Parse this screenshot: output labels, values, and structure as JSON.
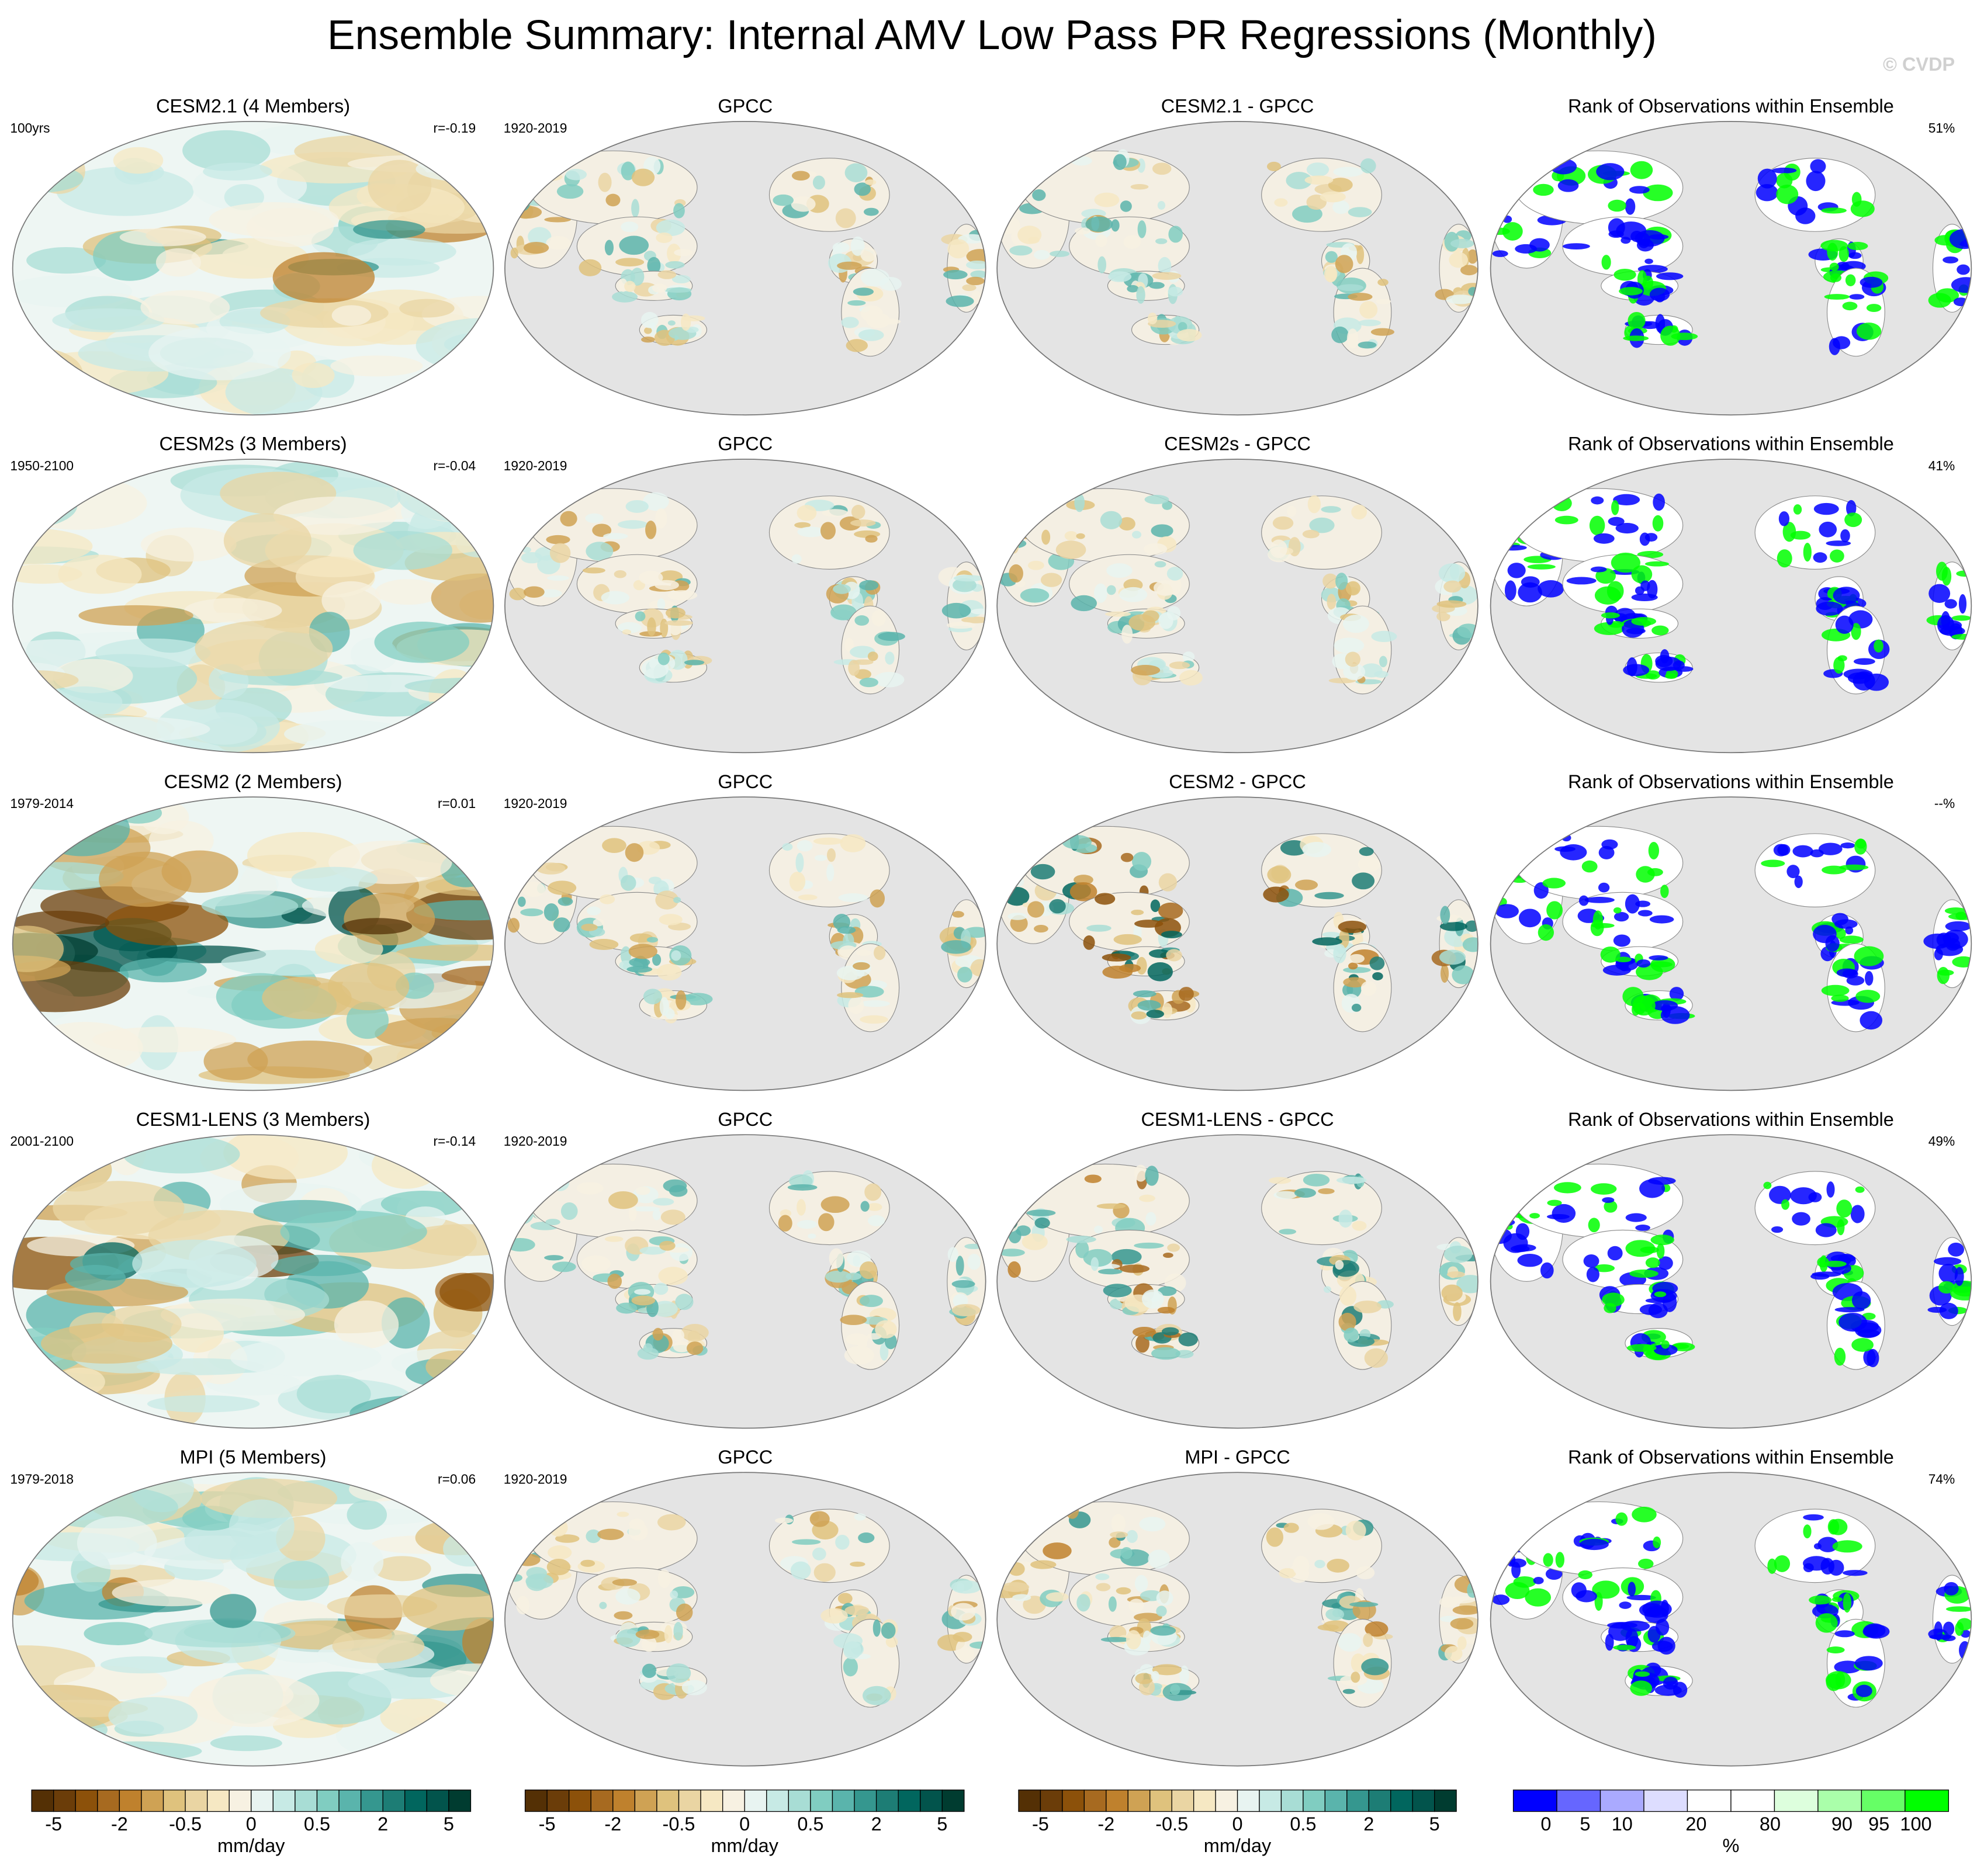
{
  "title": "Ensemble Summary: Internal AMV Low Pass PR Regressions (Monthly)",
  "watermark": "© CVDP",
  "rows": [
    {
      "model_title": "CESM2.1 (4 Members)",
      "model_period": "100yrs",
      "model_r": "r=-0.19",
      "obs_title": "GPCC",
      "obs_period": "1920-2019",
      "diff_title": "CESM2.1 - GPCC",
      "rank_title": "Rank of Observations within Ensemble",
      "rank_pct": "51%"
    },
    {
      "model_title": "CESM2s (3 Members)",
      "model_period": "1950-2100",
      "model_r": "r=-0.04",
      "obs_title": "GPCC",
      "obs_period": "1920-2019",
      "diff_title": "CESM2s - GPCC",
      "rank_title": "Rank of Observations within Ensemble",
      "rank_pct": "41%"
    },
    {
      "model_title": "CESM2 (2 Members)",
      "model_period": "1979-2014",
      "model_r": "r=0.01",
      "obs_title": "GPCC",
      "obs_period": "1920-2019",
      "diff_title": "CESM2 - GPCC",
      "rank_title": "Rank of Observations within Ensemble",
      "rank_pct": "--%"
    },
    {
      "model_title": "CESM1-LENS (3 Members)",
      "model_period": "2001-2100",
      "model_r": "r=-0.14",
      "obs_title": "GPCC",
      "obs_period": "1920-2019",
      "diff_title": "CESM1-LENS - GPCC",
      "rank_title": "Rank of Observations within Ensemble",
      "rank_pct": "49%"
    },
    {
      "model_title": "MPI (5 Members)",
      "model_period": "1979-2018",
      "model_r": "r=0.06",
      "obs_title": "GPCC",
      "obs_period": "1920-2019",
      "diff_title": "MPI - GPCC",
      "rank_title": "Rank of Observations within Ensemble",
      "rank_pct": "74%"
    }
  ],
  "colorbars": [
    {
      "labels": [
        -5,
        -2,
        -0.5,
        0,
        0.5,
        2,
        5
      ],
      "units": "mm/day",
      "colors": [
        "#543005",
        "#6b3d09",
        "#8c510a",
        "#a76a20",
        "#bf812d",
        "#cfa254",
        "#dfc27d",
        "#ead5a3",
        "#f6e8c3",
        "#f7f1e2",
        "#e8f4f1",
        "#c7eae5",
        "#a8ddd5",
        "#80cdc1",
        "#5ab4ac",
        "#35978f",
        "#1d7d75",
        "#01665e",
        "#02544c",
        "#003c30"
      ]
    },
    {
      "labels": [
        -5,
        -2,
        -0.5,
        0,
        0.5,
        2,
        5
      ],
      "units": "mm/day",
      "colors": [
        "#543005",
        "#6b3d09",
        "#8c510a",
        "#a76a20",
        "#bf812d",
        "#cfa254",
        "#dfc27d",
        "#ead5a3",
        "#f6e8c3",
        "#f7f1e2",
        "#e8f4f1",
        "#c7eae5",
        "#a8ddd5",
        "#80cdc1",
        "#5ab4ac",
        "#35978f",
        "#1d7d75",
        "#01665e",
        "#02544c",
        "#003c30"
      ]
    },
    {
      "labels": [
        -5,
        -2,
        -0.5,
        0,
        0.5,
        2,
        5
      ],
      "units": "mm/day",
      "colors": [
        "#543005",
        "#6b3d09",
        "#8c510a",
        "#a76a20",
        "#bf812d",
        "#cfa254",
        "#dfc27d",
        "#ead5a3",
        "#f6e8c3",
        "#f7f1e2",
        "#e8f4f1",
        "#c7eae5",
        "#a8ddd5",
        "#80cdc1",
        "#5ab4ac",
        "#35978f",
        "#1d7d75",
        "#01665e",
        "#02544c",
        "#003c30"
      ]
    },
    {
      "labels": [
        0,
        5,
        10,
        20,
        80,
        90,
        95,
        100
      ],
      "units": "%",
      "colors": [
        "#0000ff",
        "#6666ff",
        "#aaaaff",
        "#ddddff",
        "#ffffff",
        "#ffffff",
        "#ddffdd",
        "#aaffaa",
        "#66ff66",
        "#00ff00"
      ]
    }
  ]
}
